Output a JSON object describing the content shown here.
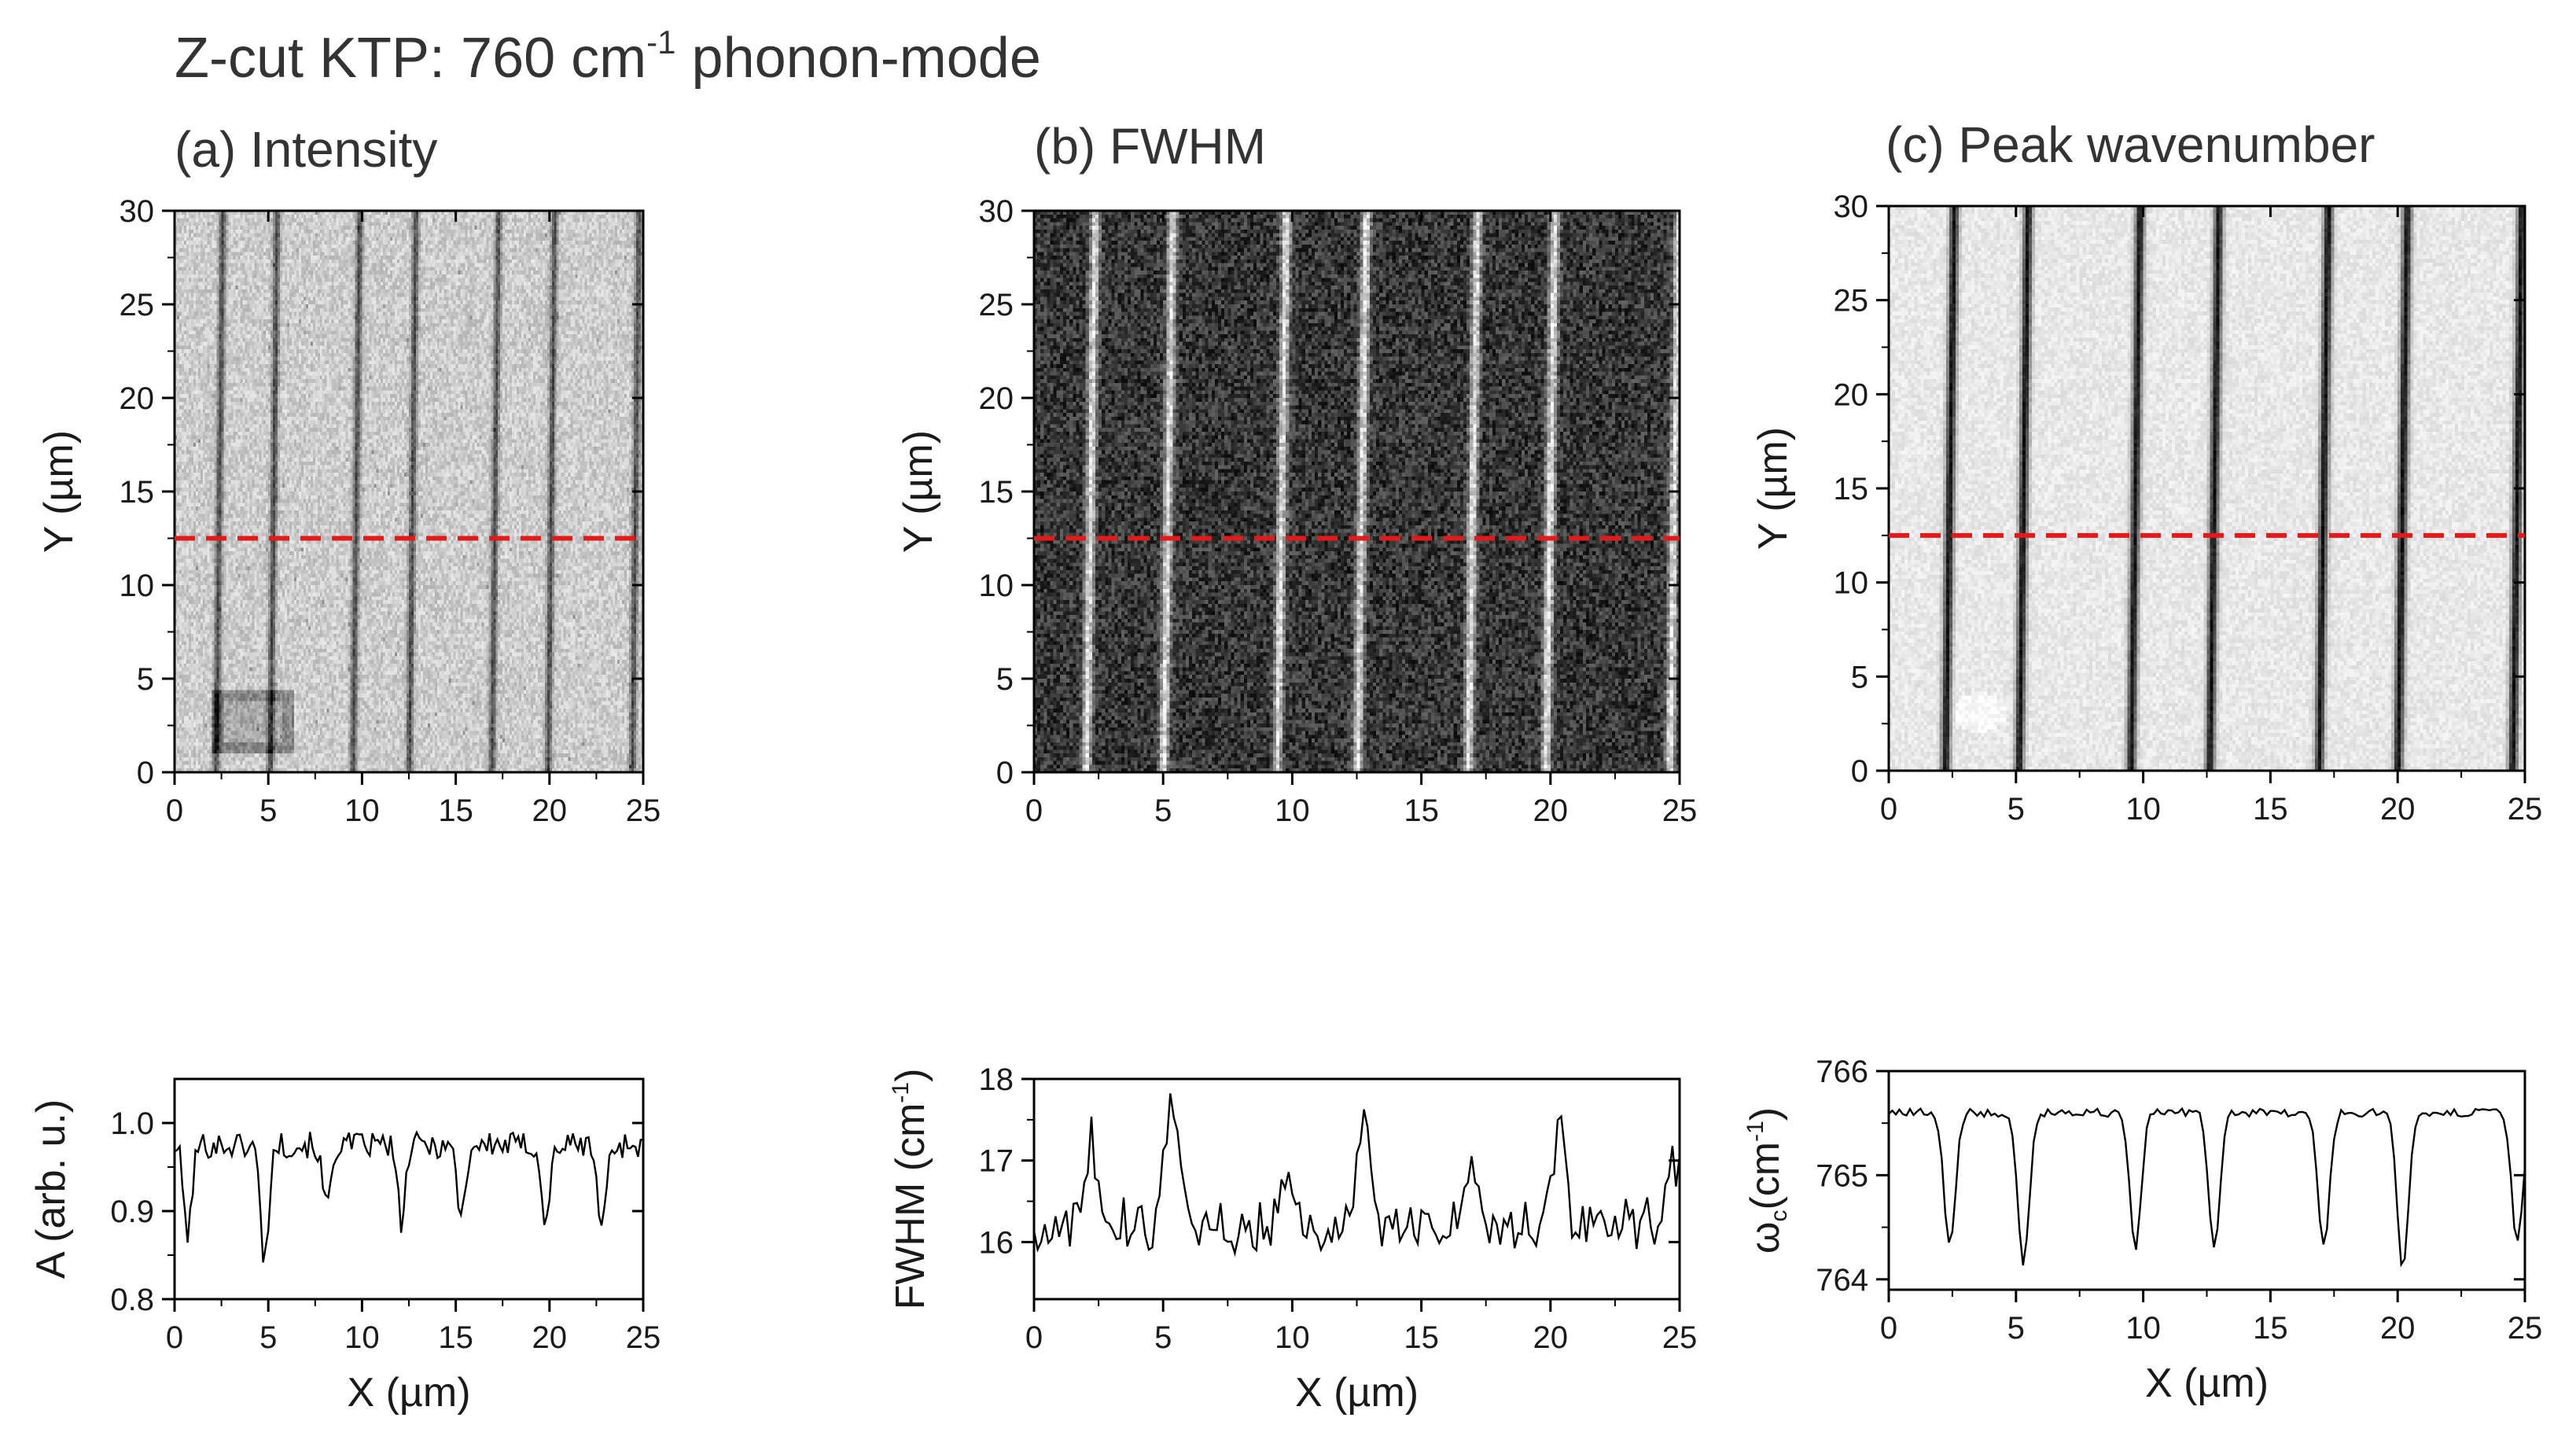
{
  "figure": {
    "title_main": "Z-cut KTP: 760 cm",
    "title_sup": "-1",
    "title_rest": " phonon-mode"
  },
  "colors": {
    "cut_line": "#e11a1a",
    "profile_line": "#000000",
    "map_light": "#dcdcdc",
    "map_dark": "#141414"
  },
  "chart_data": [
    {
      "id": "a",
      "type": "heatmap",
      "title": "(a) Intensity",
      "xlabel": "",
      "ylabel": "Y (µm)",
      "xlim": [
        0,
        25
      ],
      "ylim": [
        0,
        30
      ],
      "xticks": [
        0,
        5,
        10,
        15,
        20,
        25
      ],
      "yticks": [
        0,
        5,
        10,
        15,
        20,
        25,
        30
      ],
      "colormap": "grayscale, light background with dark stripes",
      "stripe_x": [
        2.4,
        5.3,
        9.7,
        12.7,
        17.1,
        20.1,
        24.6
      ],
      "stripe_polarity": "dark",
      "features": [
        "dark rectangular spot near x=2-6 µm, y=1-4 µm"
      ],
      "cut_line_y": 12.5
    },
    {
      "id": "a-profile",
      "type": "line",
      "title": "",
      "xlabel": "X (µm)",
      "ylabel": "A (arb. u.)",
      "xlim": [
        0,
        25
      ],
      "ylim": [
        0.8,
        1.05
      ],
      "xticks": [
        0,
        5,
        10,
        15,
        20,
        25
      ],
      "yticks": [
        0.8,
        0.9,
        1.0
      ],
      "ytick_labels": [
        "0.8",
        "0.9",
        "1.0"
      ],
      "baseline": 0.975,
      "noise": 0.015,
      "dips": [
        {
          "x": 0.7,
          "y": 0.875
        },
        {
          "x": 4.8,
          "y": 0.845
        },
        {
          "x": 8.1,
          "y": 0.905
        },
        {
          "x": 12.1,
          "y": 0.89
        },
        {
          "x": 15.3,
          "y": 0.895
        },
        {
          "x": 19.8,
          "y": 0.885
        },
        {
          "x": 22.8,
          "y": 0.88
        }
      ]
    },
    {
      "id": "b",
      "type": "heatmap",
      "title": "(b) FWHM",
      "xlabel": "",
      "ylabel": "Y (µm)",
      "xlim": [
        0,
        25
      ],
      "ylim": [
        0,
        30
      ],
      "xticks": [
        0,
        5,
        10,
        15,
        20,
        25
      ],
      "yticks": [
        0,
        5,
        10,
        15,
        20,
        25,
        30
      ],
      "colormap": "grayscale, dark noisy background with bright stripes",
      "stripe_x": [
        2.2,
        5.2,
        9.6,
        12.7,
        17.0,
        20.0,
        24.8
      ],
      "stripe_polarity": "bright",
      "cut_line_y": 12.5
    },
    {
      "id": "b-profile",
      "type": "line",
      "title": "",
      "xlabel": "X (µm)",
      "ylabel": "FWHM (cm",
      "ylabel_sup": "-1",
      "ylabel_rest": ")",
      "xlim": [
        0,
        25
      ],
      "ylim": [
        15.3,
        18
      ],
      "xticks": [
        0,
        5,
        10,
        15,
        20,
        25
      ],
      "yticks": [
        16,
        17,
        18
      ],
      "ytick_labels": [
        "16",
        "17",
        "18"
      ],
      "baseline": 16.2,
      "noise": 0.25,
      "peaks": [
        {
          "x": 2.2,
          "y": 17.2
        },
        {
          "x": 5.3,
          "y": 17.75
        },
        {
          "x": 9.8,
          "y": 16.9
        },
        {
          "x": 12.8,
          "y": 17.6
        },
        {
          "x": 17.0,
          "y": 16.9
        },
        {
          "x": 20.3,
          "y": 17.4
        },
        {
          "x": 24.8,
          "y": 17.0
        }
      ]
    },
    {
      "id": "c",
      "type": "heatmap",
      "title": "(c) Peak wavenumber",
      "xlabel": "",
      "ylabel": "Y (µm)",
      "xlim": [
        0,
        25
      ],
      "ylim": [
        0,
        30
      ],
      "xticks": [
        0,
        5,
        10,
        15,
        20,
        25
      ],
      "yticks": [
        0,
        5,
        10,
        15,
        20,
        25,
        30
      ],
      "colormap": "grayscale, very light background with sharp dark stripes",
      "stripe_x": [
        2.4,
        5.3,
        9.7,
        12.8,
        17.1,
        20.2,
        24.7
      ],
      "stripe_polarity": "dark",
      "features": [
        "faint light spot near x=3.5 µm, y=3 µm"
      ],
      "cut_line_y": 12.5
    },
    {
      "id": "c-profile",
      "type": "line",
      "title": "",
      "xlabel": "X (µm)",
      "ylabel": "ω",
      "ylabel_sub": "c",
      "ylabel_rest": "(cm",
      "ylabel_sup": "-1",
      "ylabel_end": ")",
      "xlim": [
        0,
        25
      ],
      "ylim": [
        763.9,
        766
      ],
      "xticks": [
        0,
        5,
        10,
        15,
        20,
        25
      ],
      "yticks": [
        764,
        765,
        766
      ],
      "ytick_labels": [
        "764",
        "765",
        "766"
      ],
      "baseline": 765.6,
      "noise": 0.04,
      "dips": [
        {
          "x": 2.4,
          "y": 764.3
        },
        {
          "x": 5.3,
          "y": 764.15
        },
        {
          "x": 9.7,
          "y": 764.3
        },
        {
          "x": 12.8,
          "y": 764.3
        },
        {
          "x": 17.1,
          "y": 764.3
        },
        {
          "x": 20.2,
          "y": 764.1
        },
        {
          "x": 24.7,
          "y": 764.35
        }
      ]
    }
  ]
}
